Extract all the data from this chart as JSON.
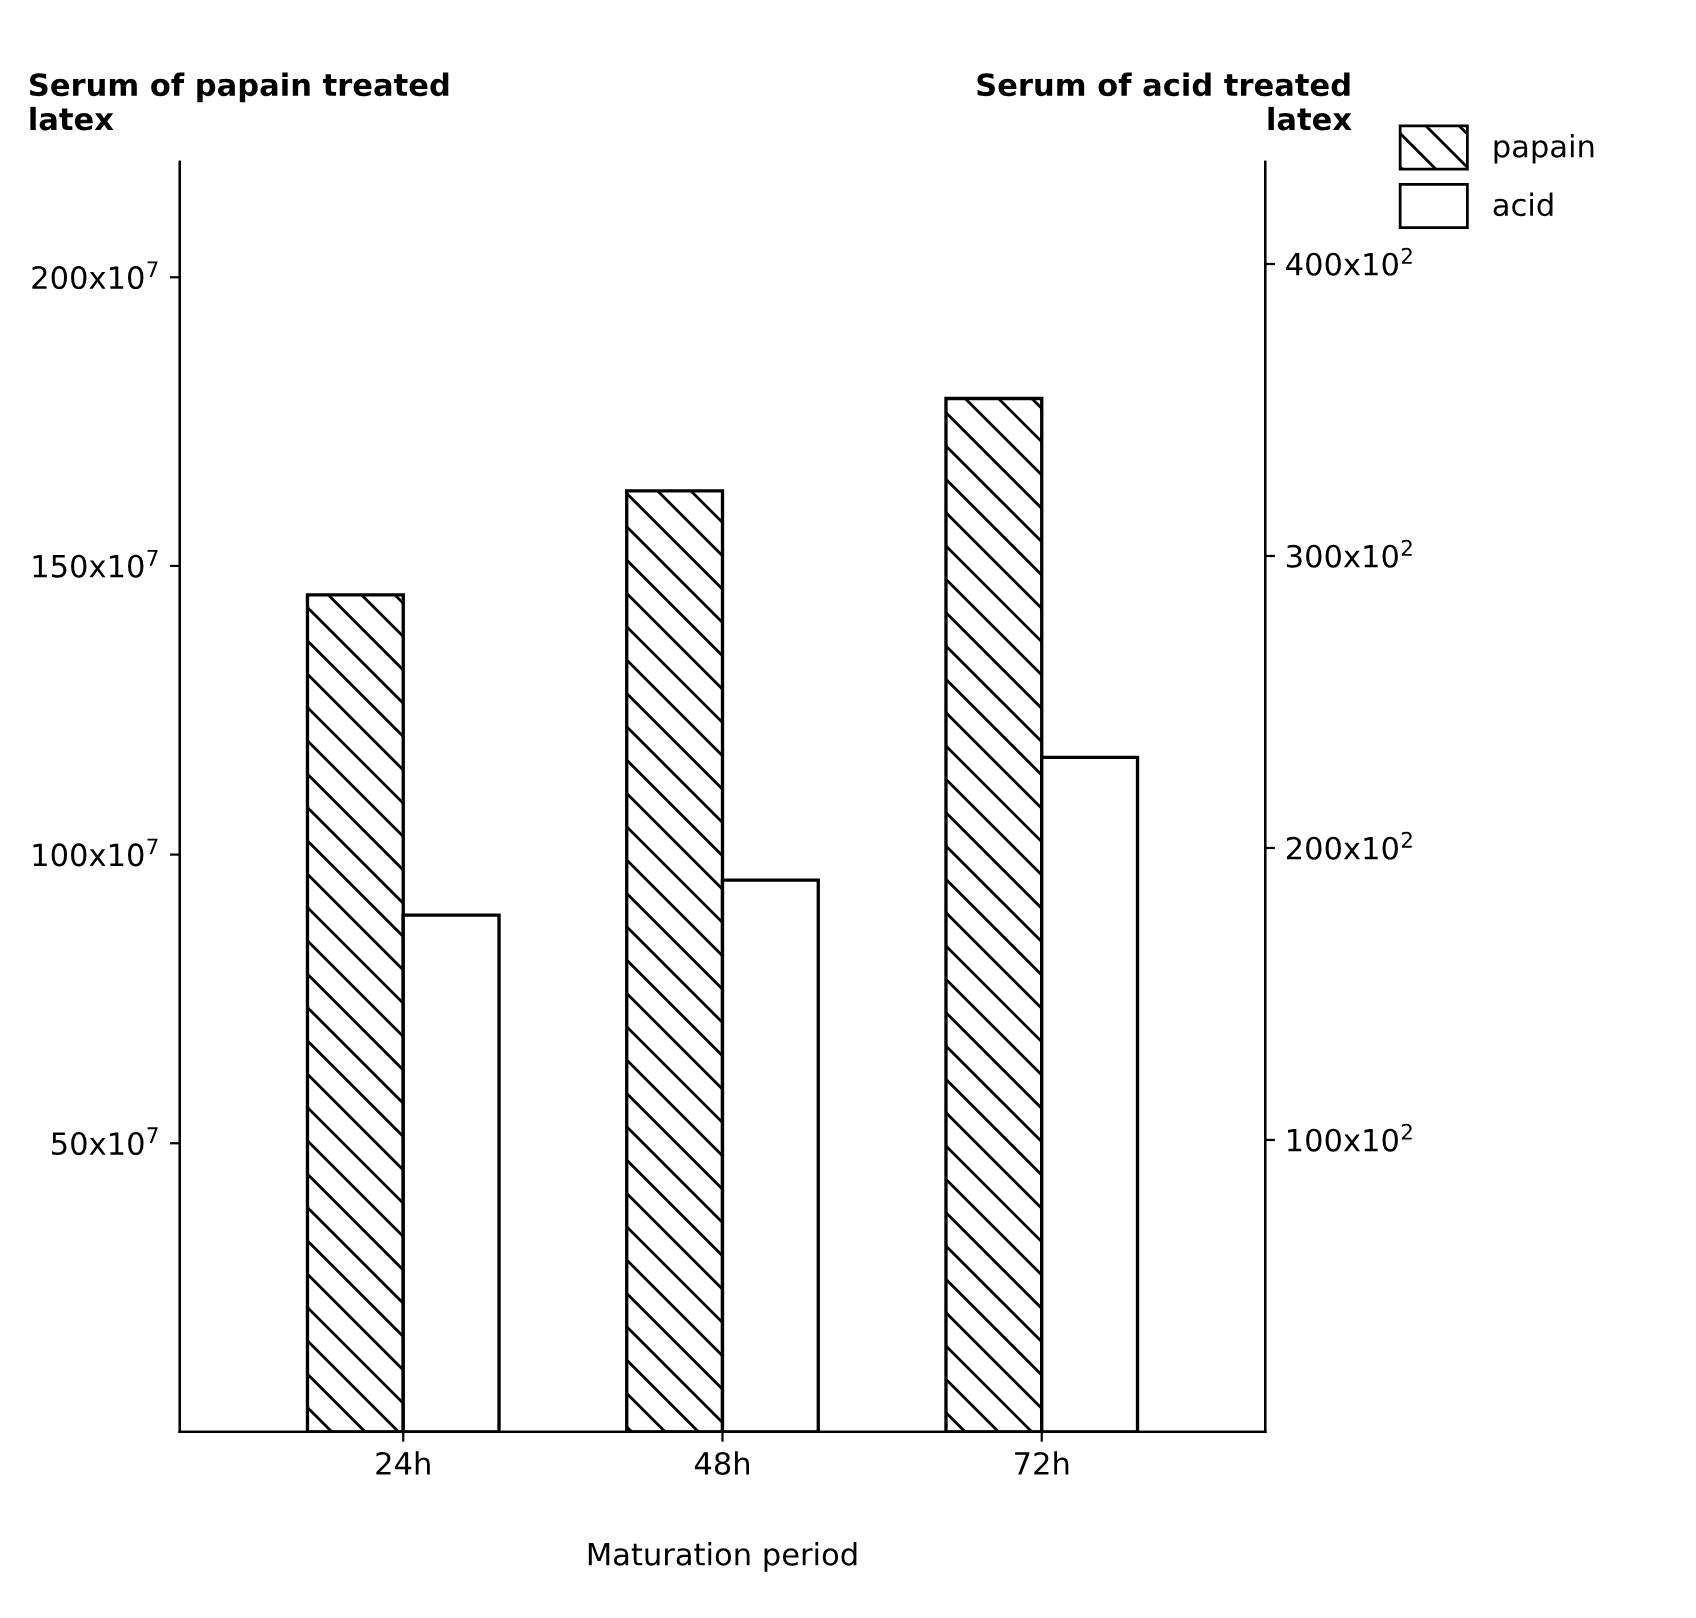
{
  "chart_data": {
    "type": "bar",
    "ylabel": "Serum of papain treated\nlatex",
    "y2label": "Serum of acid treated\nlatex",
    "xlabel": "Maturation period",
    "categories": [
      "24h",
      "48h",
      "72h"
    ],
    "series": [
      {
        "name": "papain",
        "color": "#000000",
        "values": [
          1450000000,
          1630000000,
          1790000000
        ]
      },
      {
        "name": "acid",
        "color": "#ffffff",
        "axis": "y2",
        "values": [
          17700,
          18900,
          23100
        ]
      }
    ],
    "ylim": [
      0,
      2200000000
    ],
    "yticks": [
      {
        "value": 500000000,
        "label": "50x10$^{7}$"
      },
      {
        "value": 1000000000,
        "label": "100x10$^{7}$"
      },
      {
        "value": 1500000000,
        "label": "150x10$^{7}$"
      },
      {
        "value": 2000000000,
        "label": "200x10$^{7}$"
      }
    ],
    "y2lim": [
      0,
      43500
    ],
    "y2ticks": [
      {
        "value": 10000,
        "label": "100x10$^{2}$"
      },
      {
        "value": 20000,
        "label": "200x10$^{2}$"
      },
      {
        "value": 30000,
        "label": "300x10$^{2}$"
      },
      {
        "value": 40000,
        "label": "400x10$^{2}$"
      }
    ],
    "grid": false,
    "legend": "top right"
  }
}
